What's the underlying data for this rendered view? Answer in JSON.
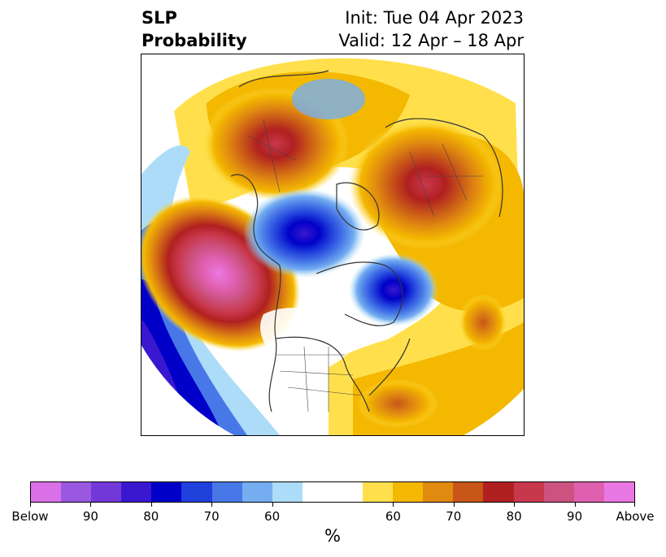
{
  "title": {
    "left_line1": "SLP",
    "left_line2": "Probability",
    "right_line1": "Init: Tue 04 Apr 2023",
    "right_line2": "Valid: 12 Apr – 18 Apr"
  },
  "colorbar": {
    "colors": [
      "#da70e8",
      "#9a57e0",
      "#7238d8",
      "#3a18d0",
      "#0000c8",
      "#2040dc",
      "#4878e8",
      "#74aef0",
      "#acdcf8",
      "#ffffff",
      "#ffe04c",
      "#f4b800",
      "#e08a10",
      "#c85618",
      "#b02020",
      "#c8384c",
      "#cc5280",
      "#e060b0",
      "#ea78e4"
    ],
    "tick_labels": [
      "Below",
      "90",
      "80",
      "70",
      "60",
      "60",
      "70",
      "80",
      "90",
      "Above"
    ],
    "unit_label": "%"
  },
  "map": {
    "projection": "north-polar-stereographic",
    "features": [
      "SLP probability shading",
      "coastlines",
      "country borders",
      "US state borders"
    ]
  }
}
